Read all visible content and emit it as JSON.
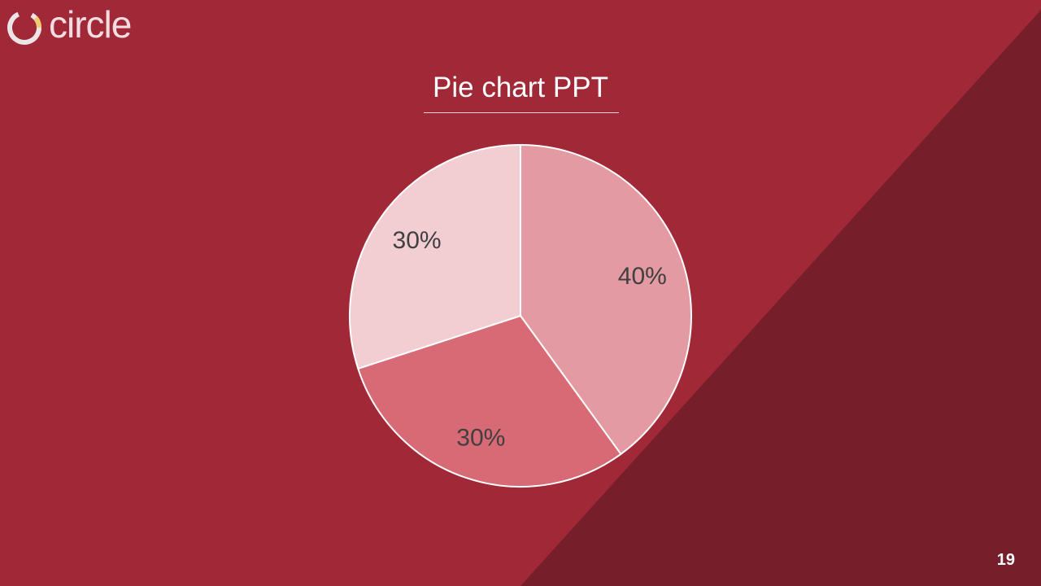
{
  "brand": {
    "logo_text": "circle"
  },
  "slide": {
    "title": "Pie chart PPT",
    "page_number": "19"
  },
  "colors": {
    "background": "#a12837",
    "diagonal_panel": "#761e29",
    "slice_1": "#e49aa3",
    "slice_2": "#d86a76",
    "slice_3": "#f2ced3",
    "slice_border": "#ffffff",
    "label_text": "#404040"
  },
  "chart_data": {
    "type": "pie",
    "title": "Pie chart PPT",
    "slices": [
      {
        "value": 40,
        "label": "40%"
      },
      {
        "value": 30,
        "label": "30%"
      },
      {
        "value": 30,
        "label": "30%"
      }
    ],
    "start_angle": "12 o'clock",
    "direction": "clockwise"
  }
}
